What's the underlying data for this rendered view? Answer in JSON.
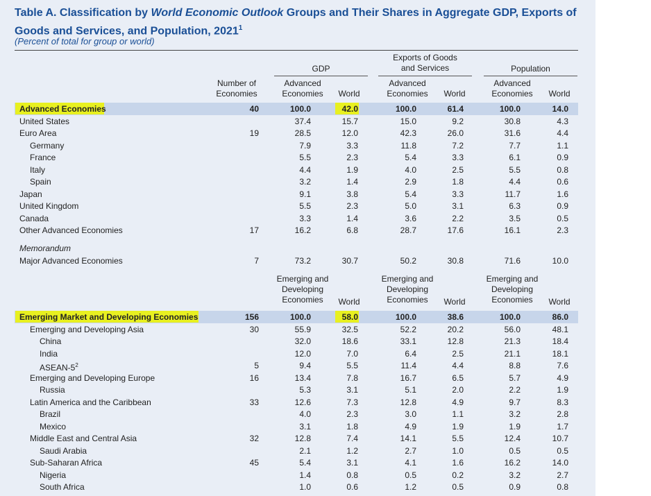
{
  "title_part1": "Table A. Classification by ",
  "title_italic": "World Economic Outlook",
  "title_part2": " Groups and Their Shares in Aggregate GDP, Exports of Goods and Services, and Population, 2021",
  "title_footnote": "1",
  "subtitle": "(Percent of total for group or world)",
  "headers": {
    "gdp": "GDP",
    "exports_line1": "Exports of Goods",
    "exports_line2": "and Services",
    "population": "Population",
    "num_line1": "Number of",
    "num_line2": "Economies",
    "adv_line1": "Advanced",
    "adv_line2": "Economies",
    "world": "World",
    "emd_line1": "Emerging and",
    "emd_line2": "Developing",
    "emd_line3": "Economies"
  },
  "advanced_rows": [
    {
      "name": "Advanced Economies",
      "num": "40",
      "gdp_g": "100.0",
      "gdp_w": "42.0",
      "exp_g": "100.0",
      "exp_w": "61.4",
      "pop_g": "100.0",
      "pop_w": "14.0"
    },
    {
      "name": "United States",
      "num": "",
      "gdp_g": "37.4",
      "gdp_w": "15.7",
      "exp_g": "15.0",
      "exp_w": "9.2",
      "pop_g": "30.8",
      "pop_w": "4.3"
    },
    {
      "name": "Euro Area",
      "num": "19",
      "gdp_g": "28.5",
      "gdp_w": "12.0",
      "exp_g": "42.3",
      "exp_w": "26.0",
      "pop_g": "31.6",
      "pop_w": "4.4"
    },
    {
      "name": "Germany",
      "num": "",
      "gdp_g": "7.9",
      "gdp_w": "3.3",
      "exp_g": "11.8",
      "exp_w": "7.2",
      "pop_g": "7.7",
      "pop_w": "1.1"
    },
    {
      "name": "France",
      "num": "",
      "gdp_g": "5.5",
      "gdp_w": "2.3",
      "exp_g": "5.4",
      "exp_w": "3.3",
      "pop_g": "6.1",
      "pop_w": "0.9"
    },
    {
      "name": "Italy",
      "num": "",
      "gdp_g": "4.4",
      "gdp_w": "1.9",
      "exp_g": "4.0",
      "exp_w": "2.5",
      "pop_g": "5.5",
      "pop_w": "0.8"
    },
    {
      "name": "Spain",
      "num": "",
      "gdp_g": "3.2",
      "gdp_w": "1.4",
      "exp_g": "2.9",
      "exp_w": "1.8",
      "pop_g": "4.4",
      "pop_w": "0.6"
    },
    {
      "name": "Japan",
      "num": "",
      "gdp_g": "9.1",
      "gdp_w": "3.8",
      "exp_g": "5.4",
      "exp_w": "3.3",
      "pop_g": "11.7",
      "pop_w": "1.6"
    },
    {
      "name": "United Kingdom",
      "num": "",
      "gdp_g": "5.5",
      "gdp_w": "2.3",
      "exp_g": "5.0",
      "exp_w": "3.1",
      "pop_g": "6.3",
      "pop_w": "0.9"
    },
    {
      "name": "Canada",
      "num": "",
      "gdp_g": "3.3",
      "gdp_w": "1.4",
      "exp_g": "3.6",
      "exp_w": "2.2",
      "pop_g": "3.5",
      "pop_w": "0.5"
    },
    {
      "name": "Other Advanced Economies",
      "num": "17",
      "gdp_g": "16.2",
      "gdp_w": "6.8",
      "exp_g": "28.7",
      "exp_w": "17.6",
      "pop_g": "16.1",
      "pop_w": "2.3"
    }
  ],
  "memorandum_label": "Memorandum",
  "memorandum_row": {
    "name": "Major Advanced Economies",
    "num": "7",
    "gdp_g": "73.2",
    "gdp_w": "30.7",
    "exp_g": "50.2",
    "exp_w": "30.8",
    "pop_g": "71.6",
    "pop_w": "10.0"
  },
  "emerging_rows": [
    {
      "name": "Emerging Market and Developing Economies",
      "num": "156",
      "gdp_g": "100.0",
      "gdp_w": "58.0",
      "exp_g": "100.0",
      "exp_w": "38.6",
      "pop_g": "100.0",
      "pop_w": "86.0"
    },
    {
      "name": "Emerging and Developing Asia",
      "num": "30",
      "gdp_g": "55.9",
      "gdp_w": "32.5",
      "exp_g": "52.2",
      "exp_w": "20.2",
      "pop_g": "56.0",
      "pop_w": "48.1"
    },
    {
      "name": "China",
      "num": "",
      "gdp_g": "32.0",
      "gdp_w": "18.6",
      "exp_g": "33.1",
      "exp_w": "12.8",
      "pop_g": "21.3",
      "pop_w": "18.4"
    },
    {
      "name": "India",
      "num": "",
      "gdp_g": "12.0",
      "gdp_w": "7.0",
      "exp_g": "6.4",
      "exp_w": "2.5",
      "pop_g": "21.1",
      "pop_w": "18.1"
    },
    {
      "name": "ASEAN-5",
      "sup": "2",
      "num": "5",
      "gdp_g": "9.4",
      "gdp_w": "5.5",
      "exp_g": "11.4",
      "exp_w": "4.4",
      "pop_g": "8.8",
      "pop_w": "7.6"
    },
    {
      "name": "Emerging and Developing Europe",
      "num": "16",
      "gdp_g": "13.4",
      "gdp_w": "7.8",
      "exp_g": "16.7",
      "exp_w": "6.5",
      "pop_g": "5.7",
      "pop_w": "4.9"
    },
    {
      "name": "Russia",
      "num": "",
      "gdp_g": "5.3",
      "gdp_w": "3.1",
      "exp_g": "5.1",
      "exp_w": "2.0",
      "pop_g": "2.2",
      "pop_w": "1.9"
    },
    {
      "name": "Latin America and the Caribbean",
      "num": "33",
      "gdp_g": "12.6",
      "gdp_w": "7.3",
      "exp_g": "12.8",
      "exp_w": "4.9",
      "pop_g": "9.7",
      "pop_w": "8.3"
    },
    {
      "name": "Brazil",
      "num": "",
      "gdp_g": "4.0",
      "gdp_w": "2.3",
      "exp_g": "3.0",
      "exp_w": "1.1",
      "pop_g": "3.2",
      "pop_w": "2.8"
    },
    {
      "name": "Mexico",
      "num": "",
      "gdp_g": "3.1",
      "gdp_w": "1.8",
      "exp_g": "4.9",
      "exp_w": "1.9",
      "pop_g": "1.9",
      "pop_w": "1.7"
    },
    {
      "name": "Middle East and Central Asia",
      "num": "32",
      "gdp_g": "12.8",
      "gdp_w": "7.4",
      "exp_g": "14.1",
      "exp_w": "5.5",
      "pop_g": "12.4",
      "pop_w": "10.7"
    },
    {
      "name": "Saudi Arabia",
      "num": "",
      "gdp_g": "2.1",
      "gdp_w": "1.2",
      "exp_g": "2.7",
      "exp_w": "1.0",
      "pop_g": "0.5",
      "pop_w": "0.5"
    },
    {
      "name": "Sub-Saharan Africa",
      "num": "45",
      "gdp_g": "5.4",
      "gdp_w": "3.1",
      "exp_g": "4.1",
      "exp_w": "1.6",
      "pop_g": "16.2",
      "pop_w": "14.0"
    },
    {
      "name": "Nigeria",
      "num": "",
      "gdp_g": "1.4",
      "gdp_w": "0.8",
      "exp_g": "0.5",
      "exp_w": "0.2",
      "pop_g": "3.2",
      "pop_w": "2.7"
    },
    {
      "name": "South Africa",
      "num": "",
      "gdp_g": "1.0",
      "gdp_w": "0.6",
      "exp_g": "1.2",
      "exp_w": "0.5",
      "pop_g": "0.9",
      "pop_w": "0.8"
    }
  ],
  "highlight_color": "#e8f020",
  "band_color": "#c7d5ea",
  "title_color": "#1a4f96"
}
